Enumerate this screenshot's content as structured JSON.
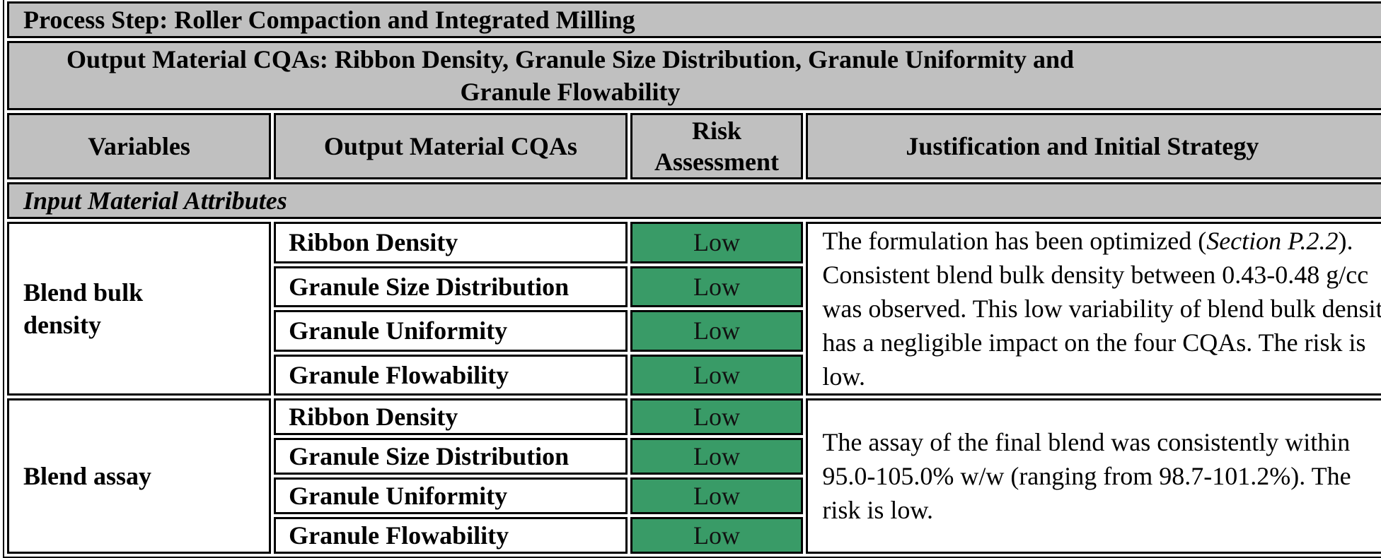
{
  "process_step": "Process Step: Roller Compaction and Integrated Milling",
  "output_cqas": "Output Material CQAs: Ribbon Density, Granule Size Distribution, Granule Uniformity and Granule Flowability",
  "headers": {
    "variables": "Variables",
    "cqas": "Output Material CQAs",
    "risk": "Risk Assessment",
    "justification": "Justification and Initial Strategy"
  },
  "section": "Input Material Attributes",
  "colors": {
    "header_bg": "#c0c0c0",
    "low_risk": "#399b67"
  },
  "groups": [
    {
      "variable": "Blend bulk density",
      "rows": [
        {
          "cqa": "Ribbon Density",
          "risk": "Low"
        },
        {
          "cqa": "Granule Size Distribution",
          "risk": "Low"
        },
        {
          "cqa": "Granule Uniformity",
          "risk": "Low"
        },
        {
          "cqa": "Granule Flowability",
          "risk": "Low"
        }
      ],
      "justification_pre": "The formulation has been optimized (",
      "justification_ref": "Section P.2.2",
      "justification_post": "). Consistent blend bulk density between 0.43-0.48 g/cc was observed. This low variability of blend bulk density has a negligible impact on the four CQAs. The risk is low."
    },
    {
      "variable": "Blend assay",
      "rows": [
        {
          "cqa": "Ribbon Density",
          "risk": "Low"
        },
        {
          "cqa": "Granule Size Distribution",
          "risk": "Low"
        },
        {
          "cqa": "Granule Uniformity",
          "risk": "Low"
        },
        {
          "cqa": "Granule Flowability",
          "risk": "Low"
        }
      ],
      "justification": "The assay of the final blend was consistently within 95.0-105.0% w/w (ranging from 98.7-101.2%). The risk is low."
    }
  ]
}
